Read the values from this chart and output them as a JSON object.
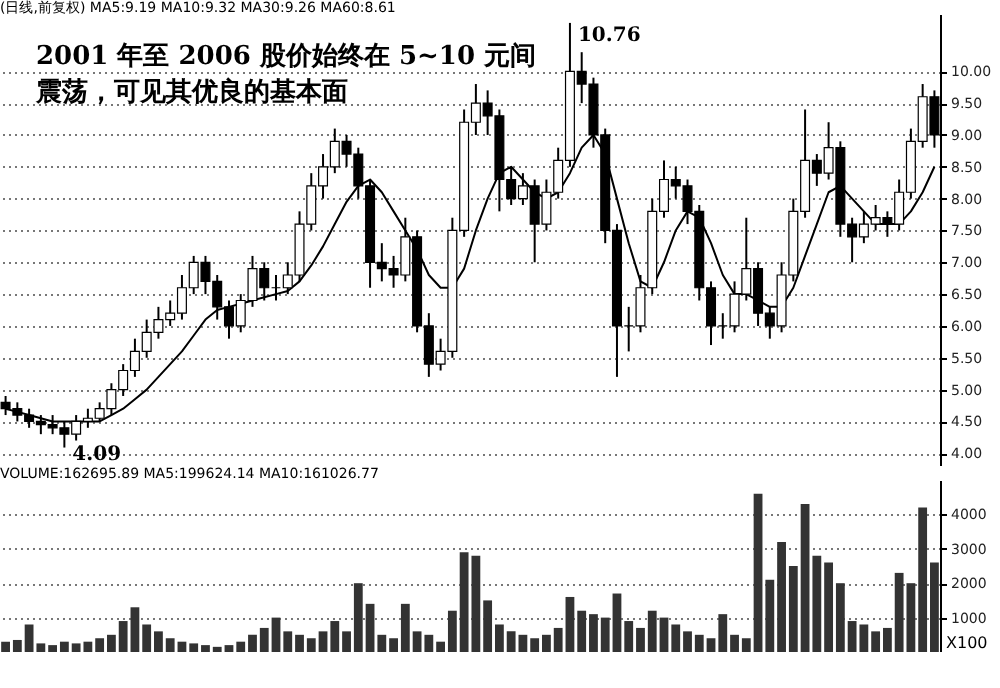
{
  "chart_data": [
    {
      "type": "candlestick",
      "title": "2001 年至 2006 股价始终在 5~10 元间震荡，可见其优良的基本面",
      "color": "#000000",
      "categories": [
        null,
        null,
        null,
        null,
        null,
        null,
        null,
        null,
        null,
        null,
        null,
        null,
        null,
        null,
        null,
        null,
        null,
        null,
        null,
        null,
        null,
        null,
        null,
        null,
        null,
        null,
        null,
        null,
        null,
        null,
        null,
        null,
        null,
        null,
        null,
        null,
        null,
        null,
        null,
        null,
        null,
        null,
        null,
        null,
        null,
        null,
        null,
        null,
        null,
        null,
        null,
        null,
        null,
        null,
        null,
        null,
        null,
        null,
        null,
        null,
        null,
        null,
        null,
        null,
        null,
        null,
        null,
        null,
        null,
        null,
        null,
        null,
        null,
        null,
        null,
        null,
        null,
        null,
        null,
        null
      ],
      "ohlc": [
        [
          4.8,
          4.9,
          4.6,
          4.7
        ],
        [
          4.7,
          4.8,
          4.5,
          4.6
        ],
        [
          4.6,
          4.7,
          4.4,
          4.5
        ],
        [
          4.5,
          4.6,
          4.3,
          4.45
        ],
        [
          4.45,
          4.6,
          4.3,
          4.4
        ],
        [
          4.4,
          4.5,
          4.09,
          4.3
        ],
        [
          4.3,
          4.6,
          4.2,
          4.5
        ],
        [
          4.5,
          4.7,
          4.4,
          4.55
        ],
        [
          4.55,
          4.8,
          4.5,
          4.7
        ],
        [
          4.7,
          5.1,
          4.6,
          5.0
        ],
        [
          5.0,
          5.4,
          4.9,
          5.3
        ],
        [
          5.3,
          5.8,
          5.2,
          5.6
        ],
        [
          5.6,
          6.1,
          5.5,
          5.9
        ],
        [
          5.9,
          6.3,
          5.8,
          6.1
        ],
        [
          6.1,
          6.4,
          6.0,
          6.2
        ],
        [
          6.2,
          6.8,
          6.1,
          6.6
        ],
        [
          6.6,
          7.1,
          6.5,
          7.0
        ],
        [
          7.0,
          7.1,
          6.5,
          6.7
        ],
        [
          6.7,
          6.8,
          6.1,
          6.3
        ],
        [
          6.3,
          6.4,
          5.8,
          6.0
        ],
        [
          6.0,
          6.5,
          5.9,
          6.4
        ],
        [
          6.4,
          7.1,
          6.3,
          6.9
        ],
        [
          6.9,
          7.0,
          6.4,
          6.6
        ],
        [
          6.6,
          6.8,
          6.4,
          6.6
        ],
        [
          6.6,
          7.0,
          6.5,
          6.8
        ],
        [
          6.8,
          7.8,
          6.7,
          7.6
        ],
        [
          7.6,
          8.4,
          7.5,
          8.2
        ],
        [
          8.2,
          8.7,
          8.0,
          8.5
        ],
        [
          8.5,
          9.1,
          8.4,
          8.9
        ],
        [
          8.9,
          9.0,
          8.5,
          8.7
        ],
        [
          8.7,
          8.8,
          8.0,
          8.2
        ],
        [
          8.2,
          8.3,
          6.6,
          7.0
        ],
        [
          7.0,
          7.3,
          6.7,
          6.9
        ],
        [
          6.9,
          7.1,
          6.6,
          6.8
        ],
        [
          6.8,
          7.7,
          6.7,
          7.4
        ],
        [
          7.4,
          7.5,
          5.9,
          6.0
        ],
        [
          6.0,
          6.2,
          5.2,
          5.4
        ],
        [
          5.4,
          5.8,
          5.3,
          5.6
        ],
        [
          5.6,
          7.7,
          5.5,
          7.5
        ],
        [
          7.5,
          9.4,
          7.4,
          9.2
        ],
        [
          9.2,
          9.8,
          9.0,
          9.5
        ],
        [
          9.5,
          9.7,
          9.0,
          9.3
        ],
        [
          9.3,
          9.4,
          7.8,
          8.3
        ],
        [
          8.3,
          8.5,
          7.9,
          8.0
        ],
        [
          8.0,
          8.4,
          7.9,
          8.2
        ],
        [
          8.2,
          8.3,
          7.0,
          7.6
        ],
        [
          7.6,
          8.3,
          7.5,
          8.1
        ],
        [
          8.1,
          8.8,
          8.0,
          8.6
        ],
        [
          8.6,
          10.76,
          8.5,
          10.0
        ],
        [
          10.0,
          10.3,
          9.5,
          9.8
        ],
        [
          9.8,
          9.9,
          8.8,
          9.0
        ],
        [
          9.0,
          9.1,
          7.3,
          7.5
        ],
        [
          7.5,
          7.6,
          5.2,
          6.0
        ],
        [
          6.0,
          6.3,
          5.6,
          6.0
        ],
        [
          6.0,
          6.8,
          5.9,
          6.6
        ],
        [
          6.6,
          8.0,
          6.5,
          7.8
        ],
        [
          7.8,
          8.6,
          7.7,
          8.3
        ],
        [
          8.3,
          8.5,
          8.0,
          8.2
        ],
        [
          8.2,
          8.3,
          7.6,
          7.8
        ],
        [
          7.8,
          7.9,
          6.4,
          6.6
        ],
        [
          6.6,
          6.7,
          5.7,
          6.0
        ],
        [
          6.0,
          6.2,
          5.8,
          6.0
        ],
        [
          6.0,
          6.7,
          5.9,
          6.5
        ],
        [
          6.5,
          7.7,
          6.4,
          6.9
        ],
        [
          6.9,
          7.0,
          6.0,
          6.2
        ],
        [
          6.2,
          6.3,
          5.8,
          6.0
        ],
        [
          6.0,
          7.0,
          5.9,
          6.8
        ],
        [
          6.8,
          8.0,
          6.7,
          7.8
        ],
        [
          7.8,
          9.4,
          7.7,
          8.6
        ],
        [
          8.6,
          8.7,
          8.2,
          8.4
        ],
        [
          8.4,
          9.2,
          8.3,
          8.8
        ],
        [
          8.8,
          8.9,
          7.4,
          7.6
        ],
        [
          7.6,
          7.7,
          7.0,
          7.4
        ],
        [
          7.4,
          7.8,
          7.3,
          7.6
        ],
        [
          7.6,
          7.9,
          7.5,
          7.7
        ],
        [
          7.7,
          7.8,
          7.4,
          7.6
        ],
        [
          7.6,
          8.3,
          7.5,
          8.1
        ],
        [
          8.1,
          9.1,
          8.0,
          8.9
        ],
        [
          8.9,
          9.8,
          8.8,
          9.6
        ],
        [
          9.6,
          9.7,
          8.8,
          9.0
        ]
      ],
      "series": [
        {
          "type": "line",
          "color": "#000000",
          "values": [
            4.7,
            4.65,
            4.6,
            4.55,
            4.5,
            4.5,
            4.5,
            4.5,
            4.5,
            4.6,
            4.7,
            4.85,
            5.0,
            5.2,
            5.4,
            5.6,
            5.85,
            6.1,
            6.25,
            6.3,
            6.35,
            6.4,
            6.45,
            6.5,
            6.55,
            6.7,
            6.95,
            7.25,
            7.6,
            7.95,
            8.2,
            8.3,
            8.1,
            7.8,
            7.5,
            7.2,
            6.8,
            6.6,
            6.6,
            6.9,
            7.5,
            8.0,
            8.4,
            8.5,
            8.3,
            8.1,
            8.0,
            8.1,
            8.4,
            8.8,
            9.0,
            8.7,
            8.0,
            7.3,
            6.7,
            6.6,
            7.0,
            7.5,
            7.8,
            7.7,
            7.3,
            6.8,
            6.5,
            6.5,
            6.4,
            6.3,
            6.3,
            6.6,
            7.1,
            7.6,
            8.1,
            8.2,
            8.0,
            7.8,
            7.6,
            7.6,
            7.6,
            7.8,
            8.1,
            8.5
          ]
        }
      ],
      "ylim": [
        3.8,
        10.9
      ],
      "yticks": [
        {
          "value": 4,
          "label": "4.00"
        },
        {
          "value": 4.5,
          "label": "4.50"
        },
        {
          "value": 5,
          "label": "5.00"
        },
        {
          "value": 5.5,
          "label": "5.50"
        },
        {
          "value": 6,
          "label": "6.00"
        },
        {
          "value": 6.5,
          "label": "6.50"
        },
        {
          "value": 7,
          "label": "7.00"
        },
        {
          "value": 7.5,
          "label": "7.50"
        },
        {
          "value": 8,
          "label": "8.00"
        },
        {
          "value": 8.5,
          "label": "8.50"
        },
        {
          "value": 9,
          "label": "9.00"
        },
        {
          "value": 9.5,
          "label": "9.50"
        },
        {
          "value": 10,
          "label": "10.00"
        }
      ],
      "grid": "y",
      "tick_labels": "y",
      "annotations": [
        "(日线,前复权) MA5:9.19 MA10:9.32 MA30:9.26 MA60:8.61",
        "10.76",
        "4.09"
      ]
    },
    {
      "type": "bar",
      "color": "#333333",
      "categories": [
        null,
        null,
        null,
        null,
        null,
        null,
        null,
        null,
        null,
        null,
        null,
        null,
        null,
        null,
        null,
        null,
        null,
        null,
        null,
        null,
        null,
        null,
        null,
        null,
        null,
        null,
        null,
        null,
        null,
        null,
        null,
        null,
        null,
        null,
        null,
        null,
        null,
        null,
        null,
        null,
        null,
        null,
        null,
        null,
        null,
        null,
        null,
        null,
        null,
        null,
        null,
        null,
        null,
        null,
        null,
        null,
        null,
        null,
        null,
        null,
        null,
        null,
        null,
        null,
        null,
        null,
        null,
        null,
        null,
        null,
        null,
        null,
        null,
        null,
        null,
        null,
        null,
        null,
        null,
        null
      ],
      "values": [
        300,
        350,
        800,
        250,
        200,
        300,
        250,
        300,
        400,
        500,
        900,
        1300,
        800,
        600,
        400,
        300,
        250,
        200,
        150,
        200,
        300,
        500,
        700,
        1000,
        600,
        500,
        400,
        600,
        900,
        600,
        2000,
        1400,
        500,
        400,
        1400,
        600,
        500,
        300,
        1200,
        2900,
        2800,
        1500,
        800,
        600,
        500,
        400,
        500,
        700,
        1600,
        1200,
        1100,
        1000,
        1700,
        900,
        700,
        1200,
        1000,
        800,
        600,
        500,
        400,
        1100,
        500,
        400,
        4600,
        2100,
        3200,
        2500,
        4300,
        2800,
        2600,
        2000,
        900,
        800,
        600,
        700,
        2300,
        2000,
        4200,
        2600
      ],
      "ylim": [
        0,
        5000
      ],
      "yticks": [
        1000,
        2000,
        3000,
        4000
      ],
      "grid": "y",
      "tick_labels": "y",
      "annotations": [
        "VOLUME:162695.89 MA5:199624.14 MA10:161026.77",
        "X100"
      ]
    }
  ]
}
